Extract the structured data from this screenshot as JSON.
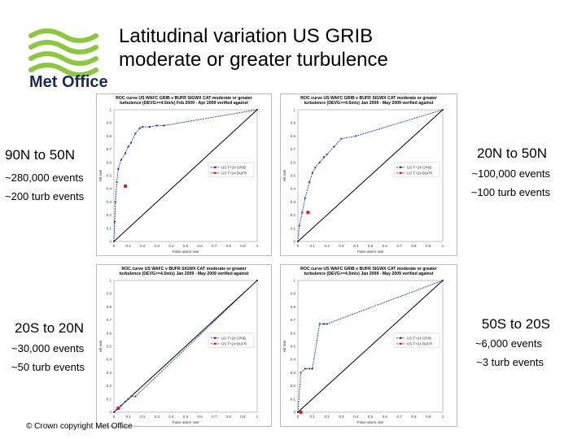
{
  "header": {
    "title": "Latitudinal variation US GRIB\nmoderate or greater turbulence",
    "logo_text": "Met Office"
  },
  "regions": [
    {
      "name": "90N to 50N",
      "events": "~280,000 events",
      "turb": "~200 turb events"
    },
    {
      "name": "20N to 50N",
      "events": "~100,000 events",
      "turb": "~100 turb events"
    },
    {
      "name": "20S to 20N",
      "events": "~30,000 events",
      "turb": "~50 turb events"
    },
    {
      "name": "50S to 20S",
      "events": "~6,000 events",
      "turb": "~3 turb events"
    }
  ],
  "footer": {
    "copyright": "© Crown copyright   Met Office"
  },
  "colors": {
    "grib": "#2b3a9a",
    "bufr": "#d42020",
    "logo": "#8dc63f",
    "diag": "#000000"
  },
  "chart_data": [
    {
      "type": "line",
      "title": "ROC curve US WAFC GRIB v BUFR SIGWX CAT moderate or greater turbulence (DEVG>=4.5m/s) Feb 2009 - Apr 2009 verified against GADS data 50N-90N",
      "xlabel": "False alarm rate",
      "ylabel": "Hit rate",
      "xlim": [
        0,
        1
      ],
      "ylim": [
        0,
        1
      ],
      "x_ticks": [
        "0",
        "0.1",
        "0.2",
        "0.3",
        "0.4",
        "0.5",
        "0.6",
        "0.7",
        "0.8",
        "0.9",
        "1"
      ],
      "y_ticks": [
        "0",
        "0.1",
        "0.2",
        "0.3",
        "0.4",
        "0.5",
        "0.6",
        "0.7",
        "0.8",
        "0.9",
        "1"
      ],
      "legend": "right",
      "series": [
        {
          "name": "US T+24 GRIB",
          "x": [
            0,
            0.005,
            0.01,
            0.02,
            0.03,
            0.05,
            0.08,
            0.1,
            0.12,
            0.15,
            0.18,
            0.2,
            0.25,
            0.3,
            0.35,
            1
          ],
          "y": [
            0,
            0.15,
            0.3,
            0.45,
            0.55,
            0.62,
            0.67,
            0.72,
            0.75,
            0.82,
            0.86,
            0.87,
            0.87,
            0.88,
            0.88,
            1
          ]
        },
        {
          "name": "US T+24 BUFR",
          "x": [
            0.08
          ],
          "y": [
            0.42
          ]
        }
      ]
    },
    {
      "type": "line",
      "title": "ROC curve US WAFC GRIB v BUFR SIGWX CAT moderate or greater turbulence (DEVG>=4.5m/s) Jan 2009 - May 2009 verified against GADS data 20N-50N",
      "xlabel": "False alarm rate",
      "ylabel": "Hit rate",
      "xlim": [
        0,
        1
      ],
      "ylim": [
        0,
        1
      ],
      "x_ticks": [
        "0",
        "0.1",
        "0.2",
        "0.3",
        "0.4",
        "0.5",
        "0.6",
        "0.7",
        "0.8",
        "0.9",
        "1"
      ],
      "y_ticks": [
        "0",
        "0.1",
        "0.2",
        "0.3",
        "0.4",
        "0.5",
        "0.6",
        "0.7",
        "0.8",
        "0.9",
        "1"
      ],
      "legend": "right",
      "series": [
        {
          "name": "US T+24 GRIB",
          "x": [
            0,
            0.01,
            0.03,
            0.05,
            0.08,
            0.1,
            0.12,
            0.15,
            0.18,
            0.2,
            0.25,
            0.3,
            0.4,
            1
          ],
          "y": [
            0,
            0.12,
            0.22,
            0.33,
            0.45,
            0.52,
            0.56,
            0.6,
            0.64,
            0.66,
            0.72,
            0.78,
            0.8,
            1
          ]
        },
        {
          "name": "US T+24 BUFR",
          "x": [
            0.07
          ],
          "y": [
            0.22
          ]
        }
      ]
    },
    {
      "type": "line",
      "title": "ROC curve US WAFC v BUFR SIGWX CAT moderate or greater turbulence (DEVG>=4.5m/s) Jan 2009 - May 2009 verified against GADS data 20S-20N",
      "xlabel": "False alarm rate",
      "ylabel": "Hit rate",
      "xlim": [
        0,
        1
      ],
      "ylim": [
        0,
        1
      ],
      "x_ticks": [
        "0",
        "0.1",
        "0.2",
        "0.3",
        "0.4",
        "0.5",
        "0.6",
        "0.7",
        "0.8",
        "0.9",
        "1"
      ],
      "y_ticks": [
        "0",
        "0.1",
        "0.2",
        "0.3",
        "0.4",
        "0.5",
        "0.6",
        "0.7",
        "0.8",
        "0.9",
        "1"
      ],
      "legend": "right",
      "series": [
        {
          "name": "US T+24 GRIB",
          "x": [
            0,
            0.02,
            0.05,
            0.08,
            0.1,
            0.12,
            0.15,
            1
          ],
          "y": [
            0,
            0.02,
            0.05,
            0.08,
            0.1,
            0.12,
            0.12,
            1
          ]
        },
        {
          "name": "US T+24 BUFR",
          "x": [
            0.03
          ],
          "y": [
            0.03
          ]
        }
      ]
    },
    {
      "type": "line",
      "title": "ROC curve US WAFC GRIB v BUFR SIGWX CAT moderate or greater turbulence (DEVG>=4.5m/s) Jan 2009 - May 2009 verified against GADS data 20S-50S",
      "xlabel": "False alarm rate",
      "ylabel": "Hit rate",
      "xlim": [
        0,
        1
      ],
      "ylim": [
        0,
        1
      ],
      "x_ticks": [
        "0",
        "0.1",
        "0.2",
        "0.3",
        "0.4",
        "0.5",
        "0.6",
        "0.7",
        "0.8",
        "0.9",
        "1"
      ],
      "y_ticks": [
        "0",
        "0.1",
        "0.2",
        "0.3",
        "0.4",
        "0.5",
        "0.6",
        "0.7",
        "0.8",
        "0.9",
        "1"
      ],
      "legend": "right",
      "series": [
        {
          "name": "US T+24 GRIB",
          "x": [
            0,
            0.02,
            0.05,
            0.08,
            0.1,
            0.15,
            0.18,
            0.2,
            1
          ],
          "y": [
            0,
            0.3,
            0.33,
            0.33,
            0.33,
            0.67,
            0.67,
            0.67,
            1
          ]
        },
        {
          "name": "US T+24 BUFR",
          "x": [
            0.02
          ],
          "y": [
            0.0
          ]
        }
      ]
    }
  ]
}
